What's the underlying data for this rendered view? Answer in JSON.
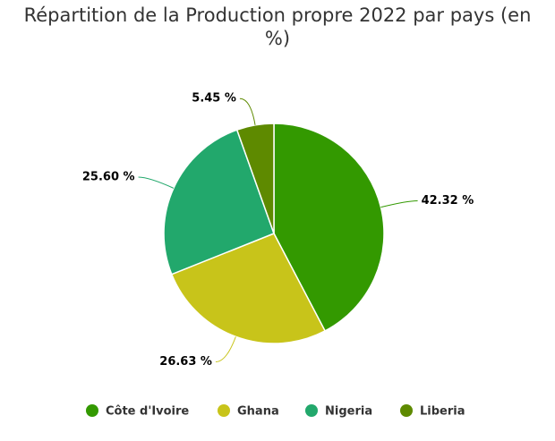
{
  "chart_data": {
    "type": "pie",
    "title": "Répartition de la Production propre 2022 par pays (en %)",
    "categories": [
      "Côte d'Ivoire",
      "Ghana",
      "Nigeria",
      "Liberia"
    ],
    "values": [
      42.32,
      26.63,
      25.6,
      5.45
    ],
    "value_labels": [
      "42.32 %",
      "26.63 %",
      "25.60 %",
      "5.45 %"
    ],
    "colors": [
      "#339900",
      "#c8c41a",
      "#22a86c",
      "#5e8a00"
    ],
    "legend": "bottom"
  }
}
